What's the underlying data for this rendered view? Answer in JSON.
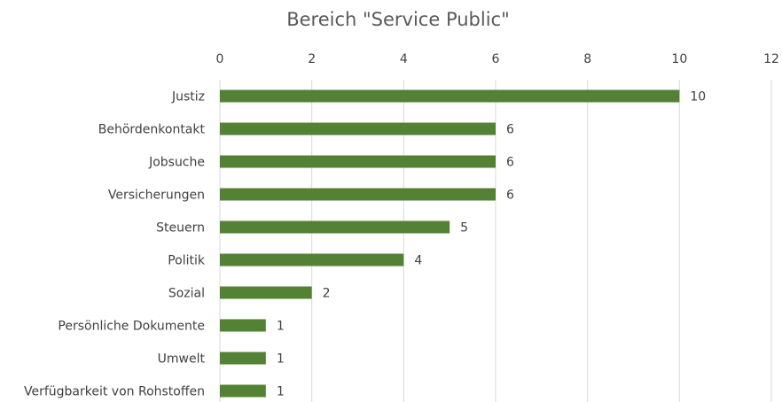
{
  "chart_data": {
    "type": "bar",
    "orientation": "horizontal",
    "title": "Bereich \"Service Public\"",
    "categories": [
      "Justiz",
      "Behördenkontakt",
      "Jobsuche",
      "Versicherungen",
      "Steuern",
      "Politik",
      "Sozial",
      "Persönliche Dokumente",
      "Umwelt",
      "Verfügbarkeit von Rohstoffen"
    ],
    "values": [
      10,
      6,
      6,
      6,
      5,
      4,
      2,
      1,
      1,
      1
    ],
    "color": "#548235",
    "xlim": [
      0,
      12
    ],
    "xticks": [
      0,
      2,
      4,
      6,
      8,
      10,
      12
    ],
    "grid": true,
    "data_labels": true
  }
}
